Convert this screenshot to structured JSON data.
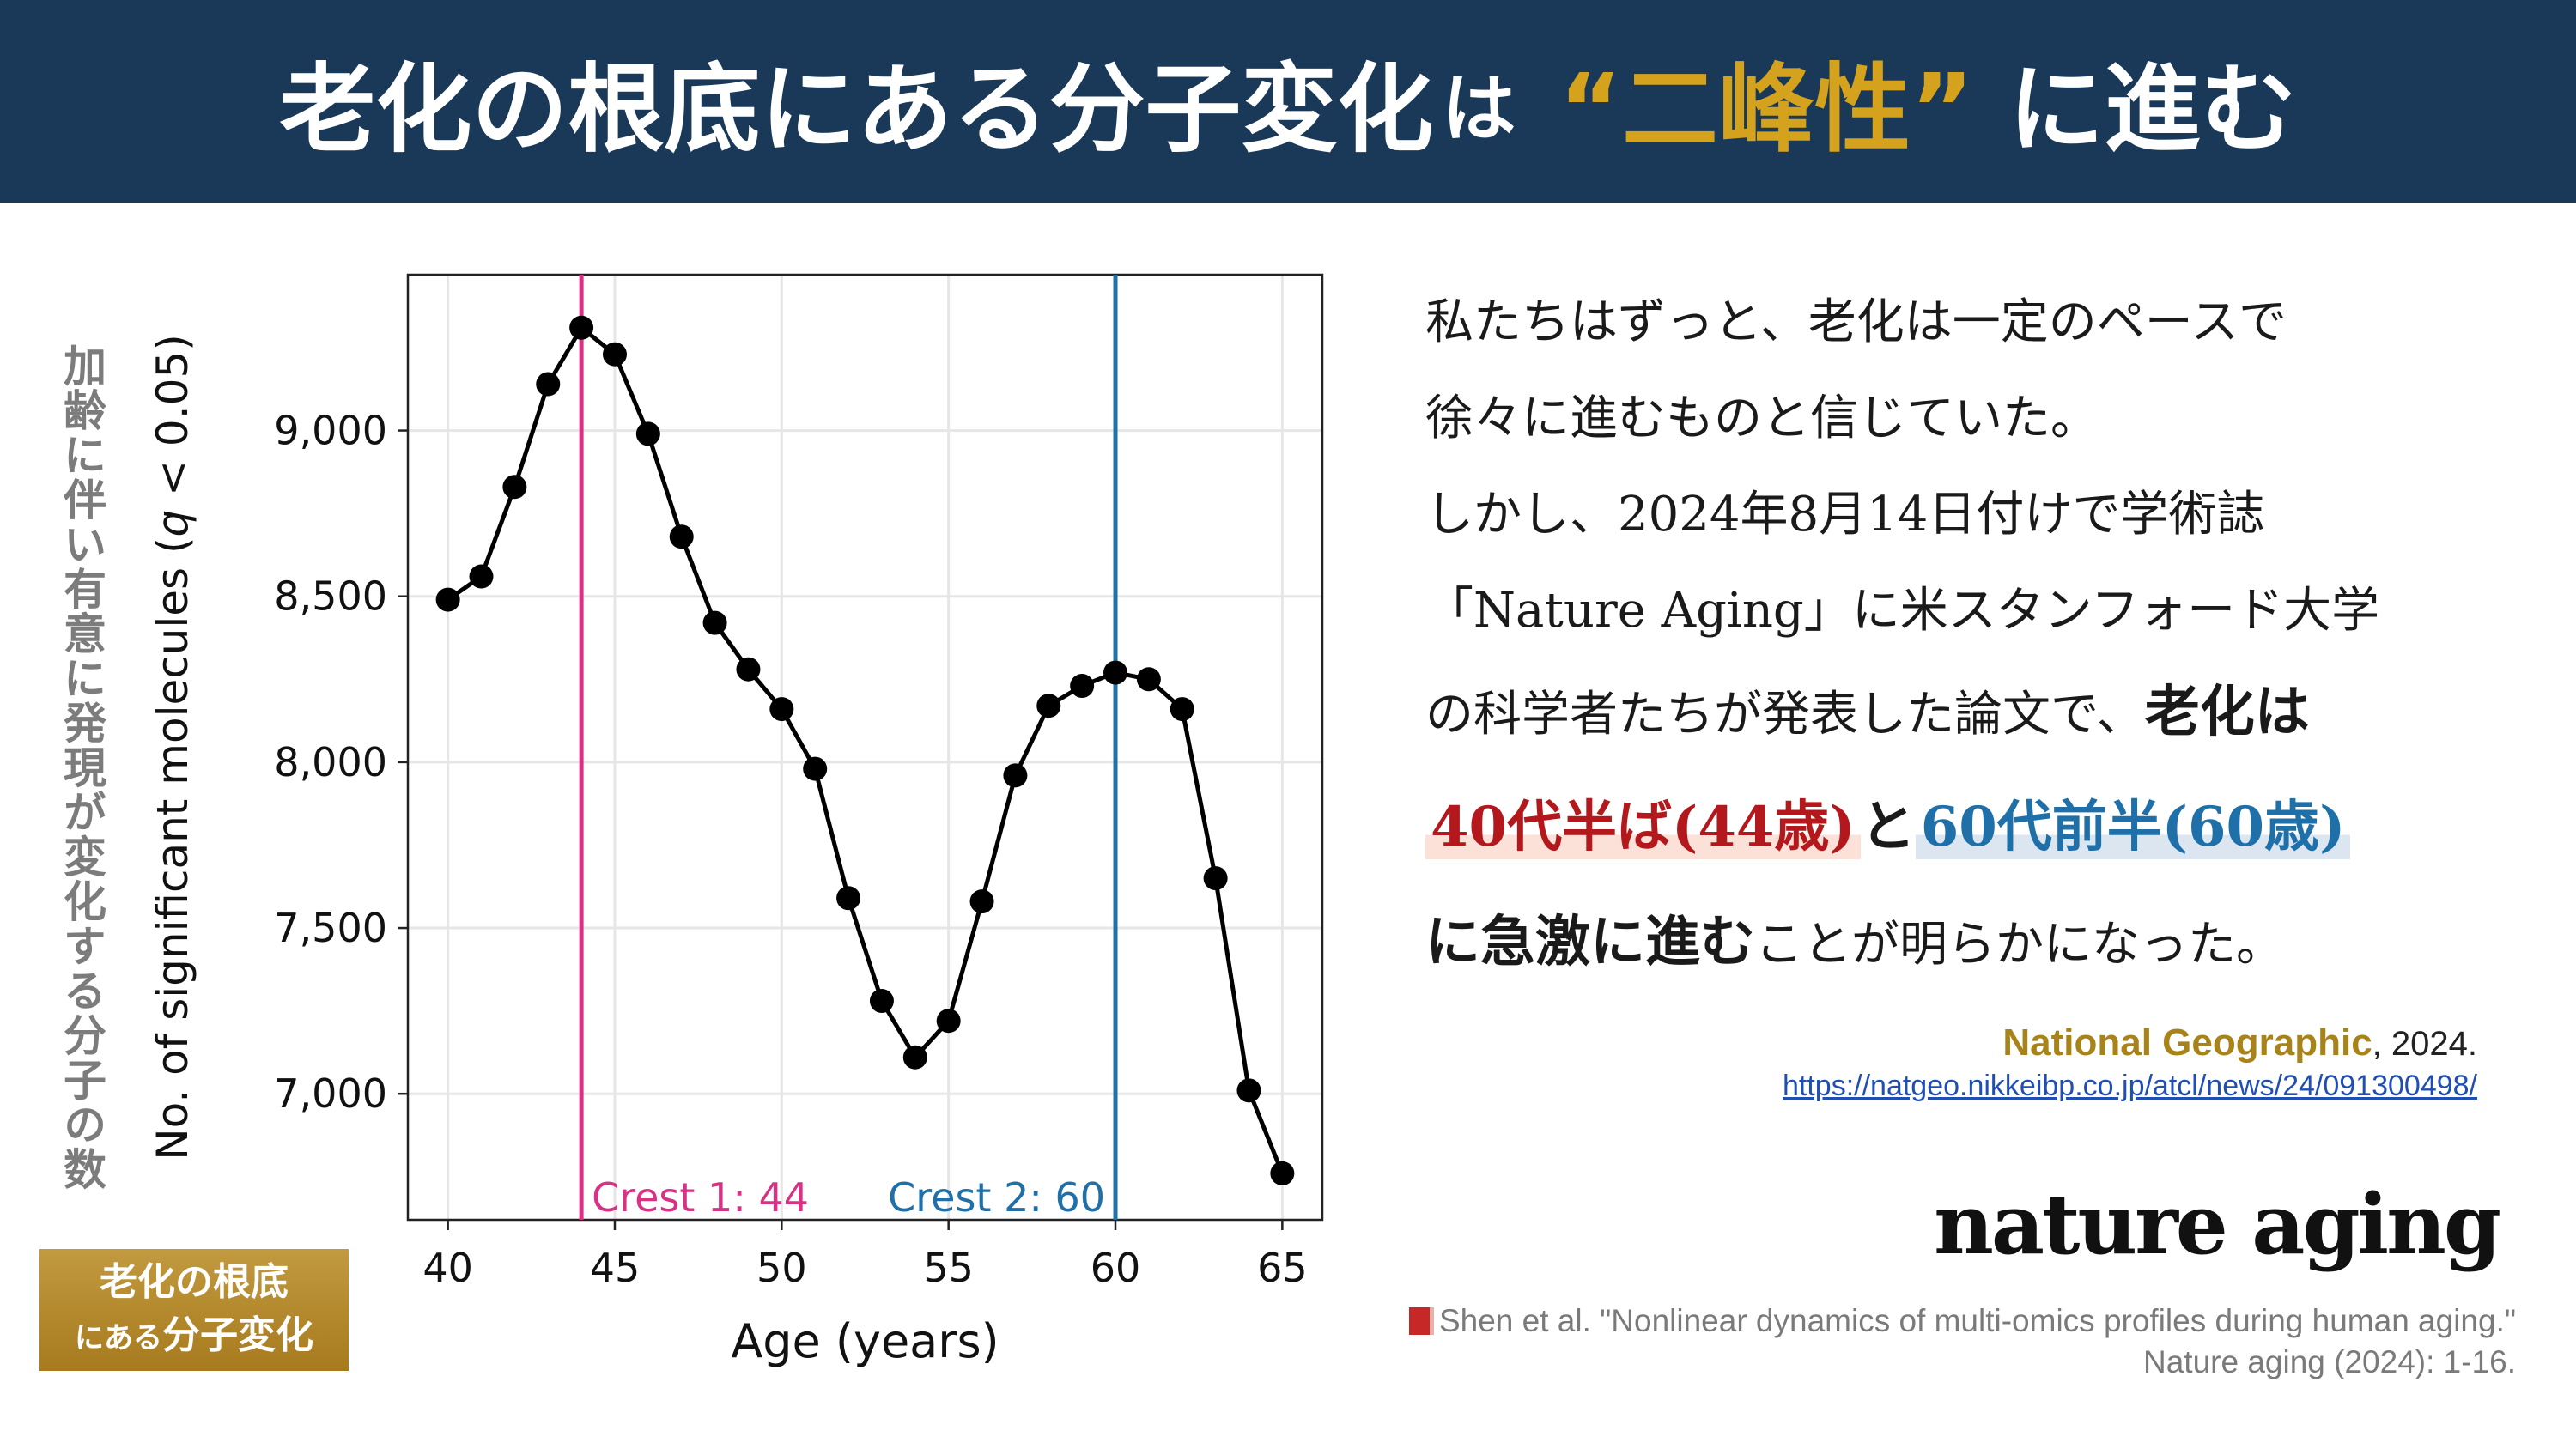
{
  "header": {
    "part1": "老化の根底にある分子変化",
    "part2": "は",
    "part3": "“二峰性”",
    "part4": "に進む"
  },
  "y_axis_jp": "加齢に伴い有意に発現が変化する分子の数",
  "badge": {
    "line1": "老化の根底",
    "line2_small": "にある",
    "line2_big": "分子変化"
  },
  "body": {
    "l1": "私たちはずっと、老化は一定のペースで",
    "l2": "徐々に進むものと信じていた。",
    "l3": "しかし、2024年8月14日付けで学術誌",
    "l4": "「Nature Aging」に米スタンフォード大学",
    "l5a": "の科学者たちが発表した論文で、",
    "l5b": "老化は",
    "l6a": "40代半ば(44歳)",
    "l6b": "と",
    "l6c": "60代前半(60歳)",
    "l7a": "に急激に進む",
    "l7b": "ことが明らかになった。"
  },
  "source": {
    "name": "National Geographic",
    "year": ", 2024.",
    "url": "https://natgeo.nikkeibp.co.jp/atcl/news/24/091300498/"
  },
  "logo": "nature aging",
  "citation": {
    "line1": "Shen et al. \"Nonlinear dynamics of multi-omics profiles during human aging.\"",
    "line2": "Nature aging (2024): 1-16."
  },
  "colors": {
    "header_bg": "#1a3857",
    "accent_gold": "#d4a21d",
    "crest1": "#d63384",
    "crest2": "#1f6fa8",
    "highlight_red": "#b3191c",
    "highlight_blue": "#1f6fa8"
  },
  "chart_data": {
    "type": "line",
    "x": [
      40,
      41,
      42,
      43,
      44,
      45,
      46,
      47,
      48,
      49,
      50,
      51,
      52,
      53,
      54,
      55,
      56,
      57,
      58,
      59,
      60,
      61,
      62,
      63,
      64,
      65
    ],
    "values": [
      8490,
      8560,
      8830,
      9140,
      9310,
      9230,
      8990,
      8680,
      8420,
      8280,
      8160,
      7980,
      7590,
      7280,
      7110,
      7220,
      7580,
      7960,
      8170,
      8230,
      8270,
      8250,
      8160,
      7650,
      7010,
      6760
    ],
    "xlabel": "Age (years)",
    "ylabel_parts": [
      "No. of significant molecules (",
      "q",
      " < 0.05)"
    ],
    "xlim": [
      38.8,
      66.2
    ],
    "ylim": [
      6620,
      9470
    ],
    "xticks": [
      40,
      45,
      50,
      55,
      60,
      65
    ],
    "yticks": [
      7000,
      7500,
      8000,
      8500,
      9000
    ],
    "ytick_labels": [
      "7,000",
      "7,500",
      "8,000",
      "8,500",
      "9,000"
    ],
    "grid": true,
    "vlines": [
      {
        "x": 44,
        "label": "Crest 1: 44",
        "color": "#d63384"
      },
      {
        "x": 60,
        "label": "Crest 2: 60",
        "color": "#1f6fa8"
      }
    ]
  }
}
